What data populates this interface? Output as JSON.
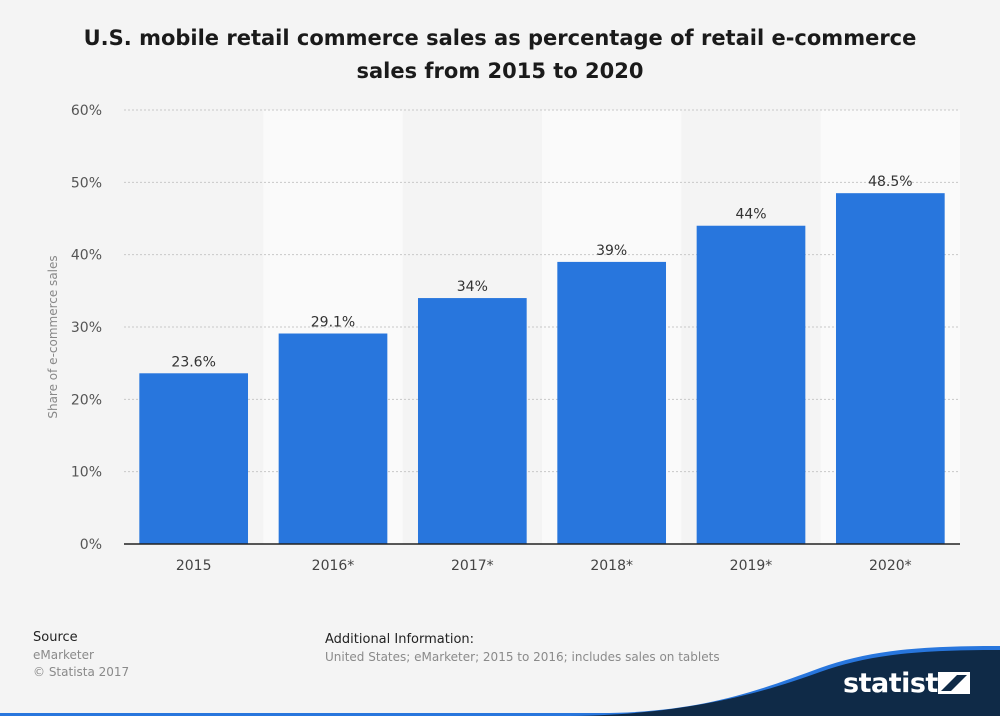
{
  "title": "U.S. mobile retail commerce sales as percentage of retail e-commerce sales from 2015 to 2020",
  "chart_data": {
    "type": "bar",
    "title": "U.S. mobile retail commerce sales as percentage of retail e-commerce sales from 2015 to 2020",
    "categories": [
      "2015",
      "2016*",
      "2017*",
      "2018*",
      "2019*",
      "2020*"
    ],
    "values": [
      23.6,
      29.1,
      34,
      39,
      44,
      48.5
    ],
    "value_labels": [
      "23.6%",
      "29.1%",
      "34%",
      "39%",
      "44%",
      "48.5%"
    ],
    "xlabel": "",
    "ylabel": "Share of e-commerce sales",
    "ylim": [
      0,
      60
    ],
    "yticks": [
      0,
      10,
      20,
      30,
      40,
      50,
      60
    ],
    "ytick_labels": [
      "0%",
      "10%",
      "20%",
      "30%",
      "40%",
      "50%",
      "60%"
    ],
    "grid": true,
    "bar_color": "#2876dd"
  },
  "footer": {
    "source_heading": "Source",
    "source_name": "eMarketer",
    "copyright": "© Statista 2017",
    "info_heading": "Additional Information:",
    "info_text": "United States; eMarketer; 2015 to 2016; includes sales on tablets"
  },
  "brand": {
    "name": "statista",
    "dark_color": "#0f2a47",
    "accent_color": "#2876dd"
  }
}
